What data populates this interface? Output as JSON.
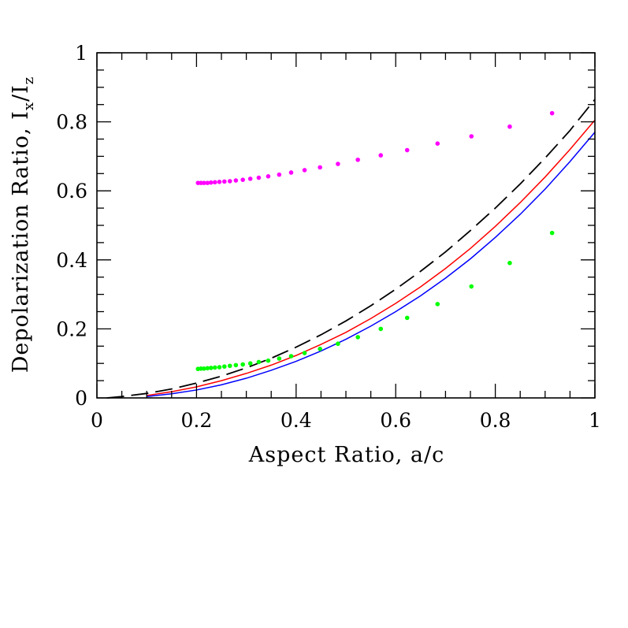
{
  "chart_data": {
    "type": "scatter",
    "title": "",
    "xlabel": "Aspect Ratio, a/c",
    "ylabel": {
      "main": "Depolarization Ratio, I",
      "sub1": "x",
      "slash": "/I",
      "sub2": "z"
    },
    "xlim": [
      0,
      1
    ],
    "ylim": [
      0,
      1
    ],
    "x_ticks": [
      {
        "value": 0,
        "label": "0"
      },
      {
        "value": 0.2,
        "label": "0.2"
      },
      {
        "value": 0.4,
        "label": "0.4"
      },
      {
        "value": 0.6,
        "label": "0.6"
      },
      {
        "value": 0.8,
        "label": "0.8"
      },
      {
        "value": 1,
        "label": "1"
      }
    ],
    "y_ticks": [
      {
        "value": 0,
        "label": "0"
      },
      {
        "value": 0.2,
        "label": "0.2"
      },
      {
        "value": 0.4,
        "label": "0.4"
      },
      {
        "value": 0.6,
        "label": "0.6"
      },
      {
        "value": 0.8,
        "label": "0.8"
      },
      {
        "value": 1,
        "label": "1"
      }
    ],
    "minor_tick_step": 0.05,
    "grid": false,
    "legend": "none",
    "series": [
      {
        "kind": "line",
        "style": "dashed",
        "color": "#000000",
        "x": [
          0.02,
          0.05,
          0.1,
          0.15,
          0.2,
          0.25,
          0.3,
          0.35,
          0.4,
          0.45,
          0.5,
          0.55,
          0.6,
          0.65,
          0.7,
          0.75,
          0.8,
          0.85,
          0.9,
          0.95,
          1.0
        ],
        "y": [
          0.0,
          0.004,
          0.013,
          0.026,
          0.043,
          0.063,
          0.087,
          0.115,
          0.147,
          0.183,
          0.223,
          0.267,
          0.315,
          0.367,
          0.423,
          0.485,
          0.55,
          0.62,
          0.695,
          0.775,
          0.865
        ]
      },
      {
        "kind": "line",
        "style": "solid",
        "color": "#ff0000",
        "x": [
          0.1,
          0.15,
          0.2,
          0.25,
          0.3,
          0.35,
          0.4,
          0.45,
          0.5,
          0.55,
          0.6,
          0.65,
          0.7,
          0.75,
          0.8,
          0.85,
          0.9,
          0.95,
          1.0
        ],
        "y": [
          0.007,
          0.018,
          0.032,
          0.05,
          0.071,
          0.095,
          0.123,
          0.155,
          0.19,
          0.23,
          0.274,
          0.322,
          0.375,
          0.433,
          0.497,
          0.566,
          0.64,
          0.72,
          0.805
        ]
      },
      {
        "kind": "line",
        "style": "solid",
        "color": "#0000ff",
        "x": [
          0.1,
          0.15,
          0.2,
          0.25,
          0.3,
          0.35,
          0.4,
          0.45,
          0.5,
          0.55,
          0.6,
          0.65,
          0.7,
          0.75,
          0.8,
          0.85,
          0.9,
          0.95,
          1.0
        ],
        "y": [
          0.004,
          0.012,
          0.023,
          0.038,
          0.057,
          0.08,
          0.106,
          0.136,
          0.17,
          0.208,
          0.25,
          0.296,
          0.347,
          0.403,
          0.465,
          0.532,
          0.605,
          0.685,
          0.77
        ]
      },
      {
        "kind": "points",
        "color": "#ff00ff",
        "x": [
          0.203,
          0.209,
          0.215,
          0.222,
          0.229,
          0.237,
          0.246,
          0.256,
          0.267,
          0.279,
          0.293,
          0.308,
          0.325,
          0.344,
          0.366,
          0.39,
          0.417,
          0.448,
          0.484,
          0.524,
          0.57,
          0.623,
          0.684,
          0.752,
          0.829,
          0.914
        ],
        "y": [
          0.623,
          0.623,
          0.623,
          0.623,
          0.624,
          0.625,
          0.626,
          0.627,
          0.628,
          0.63,
          0.632,
          0.635,
          0.638,
          0.642,
          0.647,
          0.653,
          0.66,
          0.668,
          0.678,
          0.69,
          0.703,
          0.718,
          0.737,
          0.758,
          0.786,
          0.825
        ]
      },
      {
        "kind": "points",
        "color": "#00ff00",
        "x": [
          0.203,
          0.209,
          0.215,
          0.222,
          0.229,
          0.237,
          0.246,
          0.256,
          0.267,
          0.279,
          0.293,
          0.308,
          0.325,
          0.344,
          0.366,
          0.39,
          0.417,
          0.448,
          0.484,
          0.524,
          0.57,
          0.623,
          0.684,
          0.752,
          0.829,
          0.914
        ],
        "y": [
          0.084,
          0.085,
          0.085,
          0.086,
          0.087,
          0.088,
          0.089,
          0.091,
          0.093,
          0.095,
          0.097,
          0.1,
          0.104,
          0.108,
          0.114,
          0.121,
          0.13,
          0.142,
          0.157,
          0.176,
          0.2,
          0.232,
          0.272,
          0.323,
          0.391,
          0.478
        ]
      }
    ]
  }
}
